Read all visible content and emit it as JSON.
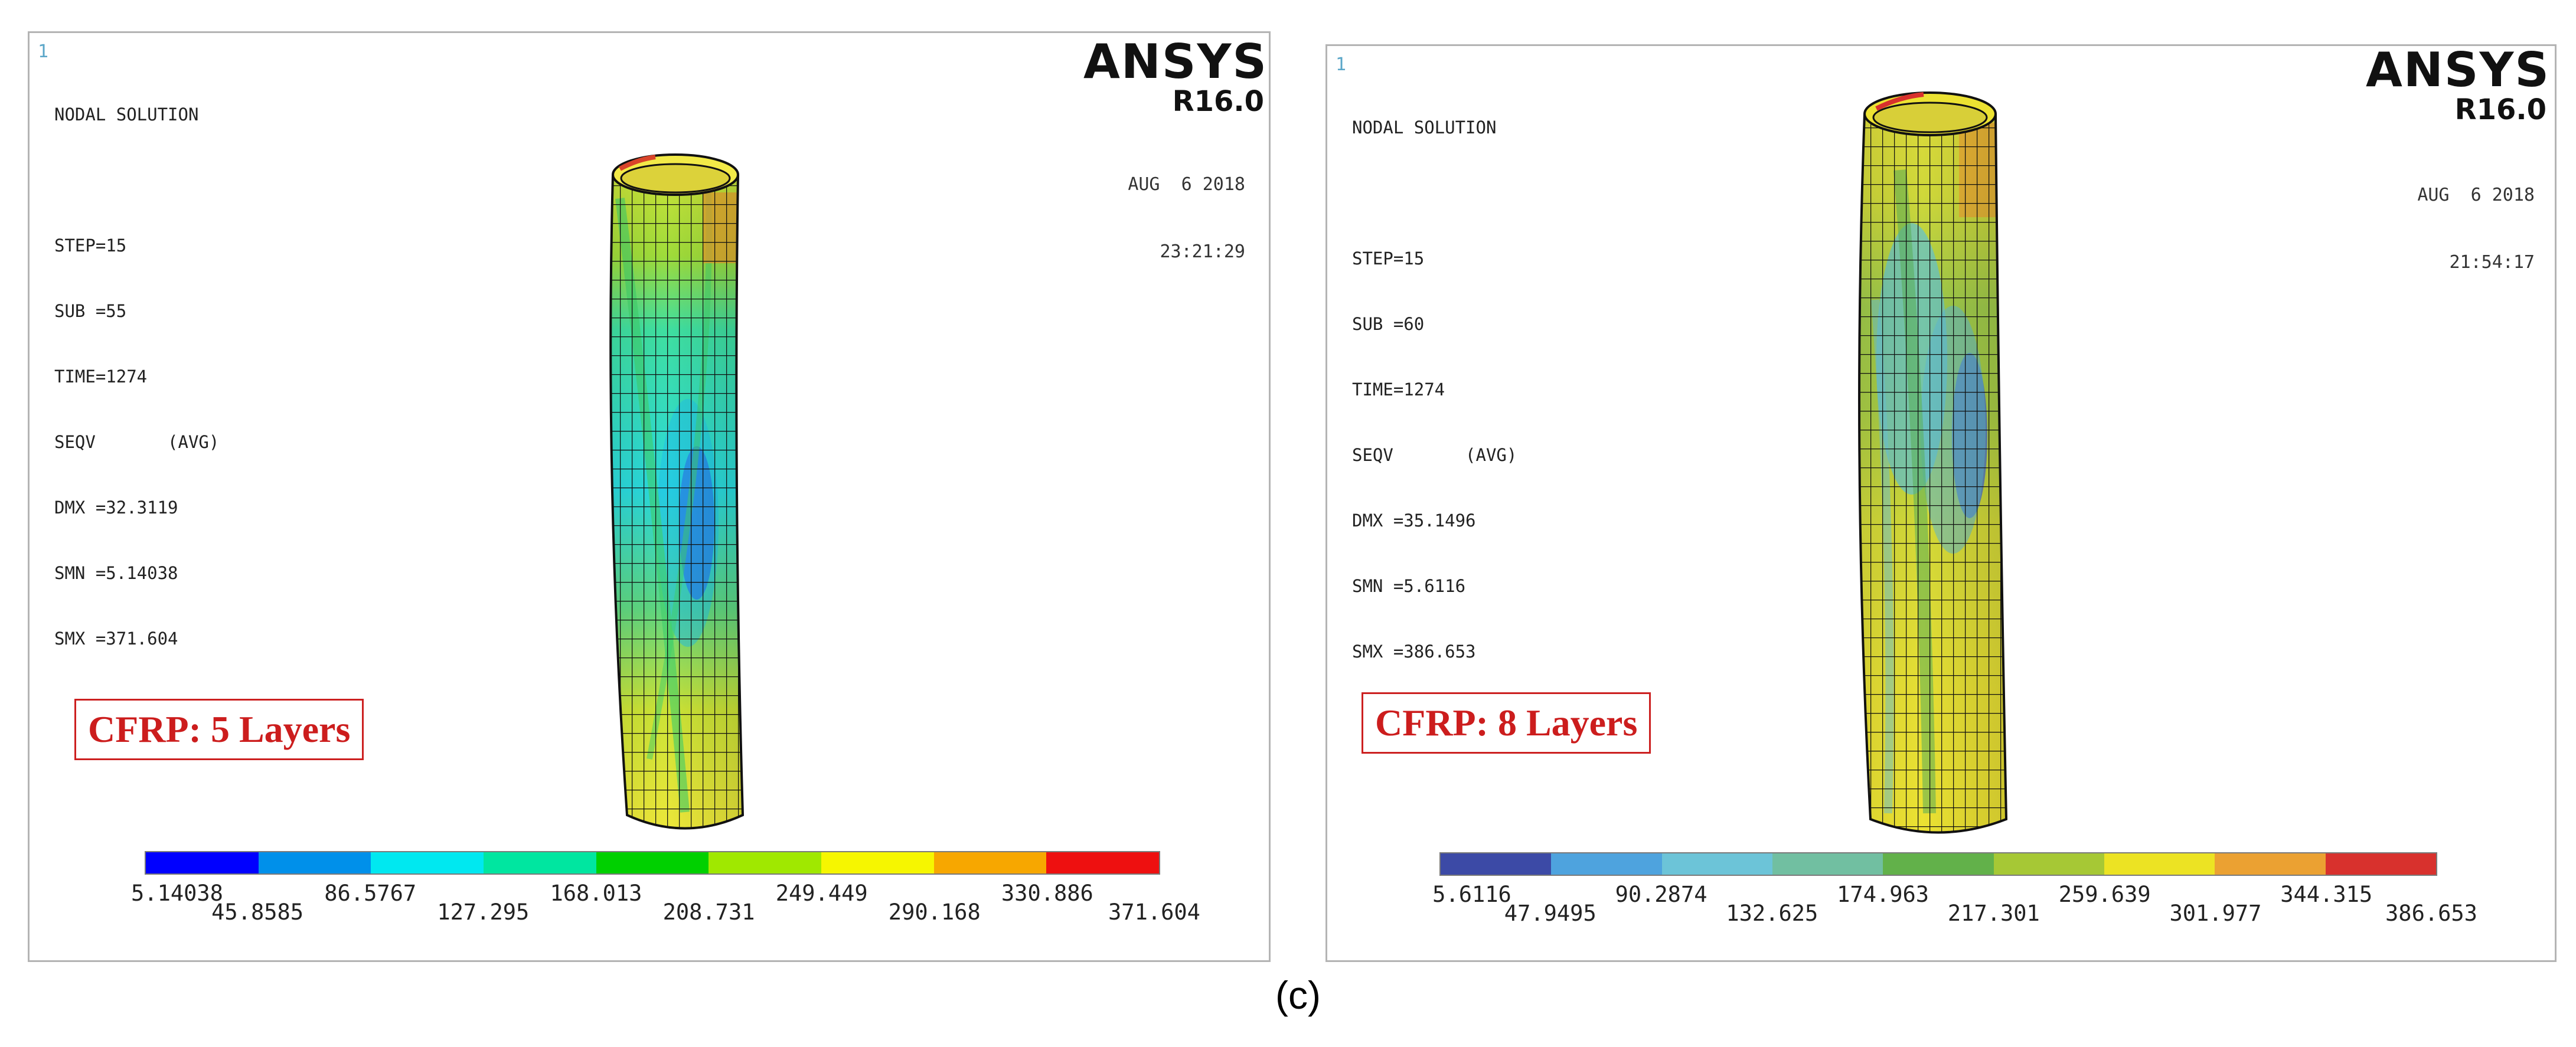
{
  "figure_label": "(c)",
  "panels": [
    {
      "id": "left",
      "window_number": "1",
      "info_lines": [
        "NODAL SOLUTION",
        "",
        "STEP=15",
        "SUB =55",
        "TIME=1274",
        "SEQV       (AVG)",
        "DMX =32.3119",
        "SMN =5.14038",
        "SMX =371.604"
      ],
      "brand": "ANSYS",
      "version": "R16.0",
      "date": "AUG  6 2018",
      "time": "23:21:29",
      "label": "CFRP: 5 Layers",
      "legend_colors": [
        "#0000ff",
        "#0090ea",
        "#00e8f0",
        "#00e6a0",
        "#00d000",
        "#a0e800",
        "#f6f600",
        "#f7a700",
        "#ee1010"
      ],
      "legend_values": [
        "5.14038",
        "45.8585",
        "86.5767",
        "127.295",
        "168.013",
        "208.731",
        "249.449",
        "290.168",
        "330.886",
        "371.604"
      ]
    },
    {
      "id": "right",
      "window_number": "1",
      "info_lines": [
        "NODAL SOLUTION",
        "",
        "STEP=15",
        "SUB =60",
        "TIME=1274",
        "SEQV       (AVG)",
        "DMX =35.1496",
        "SMN =5.6116",
        "SMX =386.653"
      ],
      "brand": "ANSYS",
      "version": "R16.0",
      "date": "AUG  6 2018",
      "time": "21:54:17",
      "label": "CFRP: 8 Layers",
      "legend_colors": [
        "#3c4aa6",
        "#4ea3de",
        "#6cc4d8",
        "#71bfa1",
        "#62b14a",
        "#a6c835",
        "#ece323",
        "#eba132",
        "#d8312d"
      ],
      "legend_values": [
        "5.6116",
        "47.9495",
        "90.2874",
        "132.625",
        "174.963",
        "217.301",
        "259.639",
        "301.977",
        "344.315",
        "386.653"
      ]
    }
  ]
}
